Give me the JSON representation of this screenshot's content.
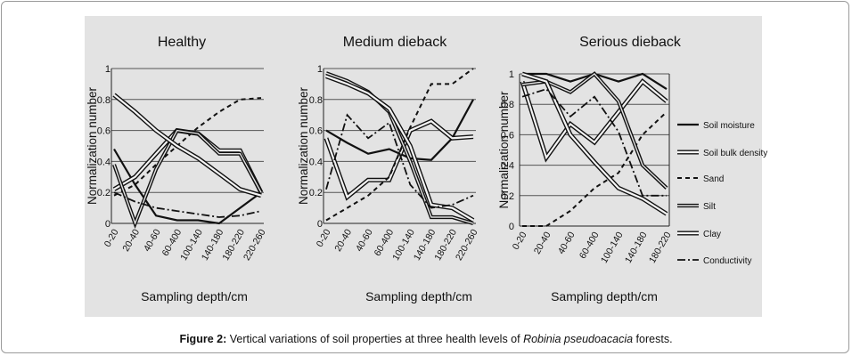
{
  "caption": {
    "label": "Figure 2:",
    "text_before": " Vertical variations of soil properties at three health levels of ",
    "species": "Robinia pseudoacacia",
    "text_after": " forests."
  },
  "chart_data": [
    {
      "type": "line",
      "title": "Healthy",
      "xlabel": "Sampling depth/cm",
      "ylabel": "Normalization number",
      "categories": [
        "0-20",
        "20-40",
        "40-60",
        "60-400",
        "100-140",
        "140-180",
        "180-220",
        "220-260"
      ],
      "ylim": [
        0,
        1
      ],
      "yticks": [
        "0",
        "0.2",
        "0.4",
        "0.6",
        "0.8",
        "1"
      ],
      "series": [
        {
          "name": "Soil moisture",
          "style": "solid",
          "values": [
            0.48,
            0.25,
            0.05,
            0.02,
            0.02,
            0.0,
            0.1,
            0.2
          ]
        },
        {
          "name": "Soil bulk density",
          "style": "double-open",
          "values": [
            0.22,
            0.3,
            0.45,
            0.6,
            0.58,
            0.47,
            0.47,
            0.2
          ]
        },
        {
          "name": "Sand",
          "style": "dashed",
          "values": [
            0.18,
            0.25,
            0.38,
            0.5,
            0.62,
            0.72,
            0.8,
            0.81
          ]
        },
        {
          "name": "Silt",
          "style": "double",
          "values": [
            0.38,
            0.0,
            0.35,
            0.6,
            0.58,
            0.45,
            0.45,
            0.2
          ]
        },
        {
          "name": "Clay",
          "style": "double-open",
          "values": [
            0.83,
            0.72,
            0.6,
            0.5,
            0.42,
            0.32,
            0.22,
            0.18
          ]
        },
        {
          "name": "Conductivity",
          "style": "dashdot",
          "values": [
            0.2,
            0.14,
            0.1,
            0.08,
            0.06,
            0.04,
            0.05,
            0.08
          ]
        }
      ]
    },
    {
      "type": "line",
      "title": "Medium dieback",
      "xlabel": "Sampling depth/cm",
      "ylabel": "Normalization number",
      "categories": [
        "0-20",
        "20-40",
        "40-60",
        "60-400",
        "100-140",
        "140-180",
        "180-220",
        "220-260"
      ],
      "ylim": [
        0,
        1
      ],
      "yticks": [
        "0",
        "0.2",
        "0.4",
        "0.6",
        "0.8",
        "1"
      ],
      "series": [
        {
          "name": "Soil moisture",
          "style": "solid",
          "values": [
            0.6,
            0.52,
            0.45,
            0.48,
            0.42,
            0.41,
            0.55,
            0.8
          ]
        },
        {
          "name": "Soil bulk density",
          "style": "double-open",
          "values": [
            0.55,
            0.17,
            0.28,
            0.28,
            0.6,
            0.66,
            0.55,
            0.56
          ]
        },
        {
          "name": "Sand",
          "style": "dashed",
          "values": [
            0.02,
            0.1,
            0.18,
            0.3,
            0.62,
            0.9,
            0.9,
            1.0
          ]
        },
        {
          "name": "Silt",
          "style": "double",
          "values": [
            0.97,
            0.92,
            0.85,
            0.72,
            0.4,
            0.04,
            0.04,
            0.0
          ]
        },
        {
          "name": "Clay",
          "style": "double-open",
          "values": [
            0.95,
            0.9,
            0.84,
            0.74,
            0.5,
            0.12,
            0.1,
            0.02
          ]
        },
        {
          "name": "Conductivity",
          "style": "dashdot",
          "values": [
            0.22,
            0.7,
            0.55,
            0.65,
            0.25,
            0.1,
            0.12,
            0.18
          ]
        }
      ]
    },
    {
      "type": "line",
      "title": "Serious dieback",
      "xlabel": "Sampling depth/cm",
      "ylabel": "Normalization number",
      "categories": [
        "0-20",
        "20-40",
        "40-60",
        "60-400",
        "100-140",
        "140-180",
        "180-220"
      ],
      "ylim": [
        0,
        1
      ],
      "yticks": [
        "0",
        "0.2",
        "0.4",
        "0.6",
        "0.8",
        "1"
      ],
      "series": [
        {
          "name": "Soil moisture",
          "style": "solid",
          "values": [
            1.0,
            1.0,
            0.95,
            1.0,
            0.95,
            1.0,
            0.9
          ]
        },
        {
          "name": "Soil bulk density",
          "style": "double-open",
          "values": [
            0.95,
            0.45,
            0.67,
            0.55,
            0.75,
            0.95,
            0.82
          ]
        },
        {
          "name": "Sand",
          "style": "dashed",
          "values": [
            0.0,
            0.0,
            0.1,
            0.25,
            0.35,
            0.6,
            0.75
          ]
        },
        {
          "name": "Silt",
          "style": "double",
          "values": [
            0.93,
            0.95,
            0.88,
            1.0,
            0.82,
            0.4,
            0.25
          ]
        },
        {
          "name": "Clay",
          "style": "double-open",
          "values": [
            1.0,
            0.95,
            0.6,
            0.42,
            0.25,
            0.18,
            0.08
          ]
        },
        {
          "name": "Conductivity",
          "style": "dashdot",
          "values": [
            0.85,
            0.9,
            0.72,
            0.85,
            0.62,
            0.2,
            0.2
          ]
        }
      ]
    }
  ],
  "legend": [
    "Soil moisture",
    "Soil bulk density",
    "Sand",
    "Silt",
    "Clay",
    "Conductivity"
  ]
}
